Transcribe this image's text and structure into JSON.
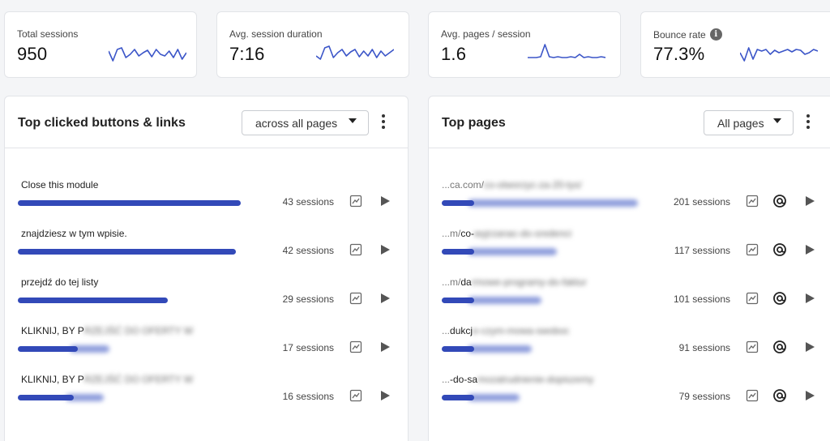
{
  "stats": [
    {
      "label": "Total sessions",
      "value": "950",
      "info": false,
      "sparkline": [
        14,
        26,
        12,
        10,
        22,
        18,
        12,
        20,
        16,
        13,
        21,
        12,
        18,
        20,
        14,
        22,
        12,
        24,
        16
      ]
    },
    {
      "label": "Avg. session duration",
      "value": "7:16",
      "info": false,
      "sparkline": [
        20,
        24,
        10,
        8,
        22,
        16,
        12,
        20,
        15,
        12,
        21,
        14,
        20,
        12,
        22,
        14,
        20,
        16,
        12
      ]
    },
    {
      "label": "Avg. pages / session",
      "value": "1.6",
      "info": false,
      "sparkline": [
        22,
        22,
        22,
        21,
        6,
        21,
        22,
        21,
        22,
        22,
        21,
        22,
        18,
        22,
        21,
        22,
        22,
        21,
        22
      ]
    },
    {
      "label": "Bounce rate",
      "value": "77.3%",
      "info": true,
      "sparkline": [
        16,
        26,
        10,
        24,
        12,
        14,
        12,
        18,
        13,
        16,
        14,
        12,
        15,
        12,
        13,
        18,
        16,
        12,
        14
      ]
    }
  ],
  "info_glyph": "i",
  "panels": {
    "buttons": {
      "title": "Top clicked buttons & links",
      "filter": "across all pages",
      "rows": [
        {
          "label": "Close this module",
          "label_blur": "",
          "sessions": 43,
          "count_label": "43 sessions"
        },
        {
          "label": "znajdziesz w tym wpisie.",
          "label_blur": "",
          "sessions": 42,
          "count_label": "42 sessions"
        },
        {
          "label": "przejdź do tej listy",
          "label_blur": "",
          "sessions": 29,
          "count_label": "29 sessions"
        },
        {
          "label": "KLIKNIJ, BY P",
          "label_blur": "RZEJŚĆ DO OFERTY W",
          "sessions": 17,
          "count_label": "17 sessions"
        },
        {
          "label": "KLIKNIJ, BY P",
          "label_blur": "RZEJŚĆ DO OFERTY W",
          "sessions": 16,
          "count_label": "16 sessions"
        }
      ]
    },
    "pages": {
      "title": "Top pages",
      "filter": "All pages",
      "rows": [
        {
          "prefix": "...ca.com/",
          "label": "",
          "label_blur": "co-otworzyc-za-20-tys/",
          "sessions": 201,
          "count_label": "201 sessions"
        },
        {
          "prefix": "...m/",
          "label": "co-",
          "label_blur": "wyjrzanac-do-sredenci",
          "sessions": 117,
          "count_label": "117 sessions"
        },
        {
          "prefix": "...m/",
          "label": "da",
          "label_blur": "rmowe-programy-do-faktur",
          "sessions": 101,
          "count_label": "101 sessions"
        },
        {
          "prefix": "...",
          "label": "dukcj",
          "label_blur": "e-czym-mowa-swoboc",
          "sessions": 91,
          "count_label": "91 sessions"
        },
        {
          "prefix": "...",
          "label": "-do-sa",
          "label_blur": "mozatrudnienie-dopiszemy",
          "sessions": 79,
          "count_label": "79 sessions"
        }
      ]
    }
  },
  "colors": {
    "bar": "#3249b8",
    "spark": "#3b55c8"
  }
}
